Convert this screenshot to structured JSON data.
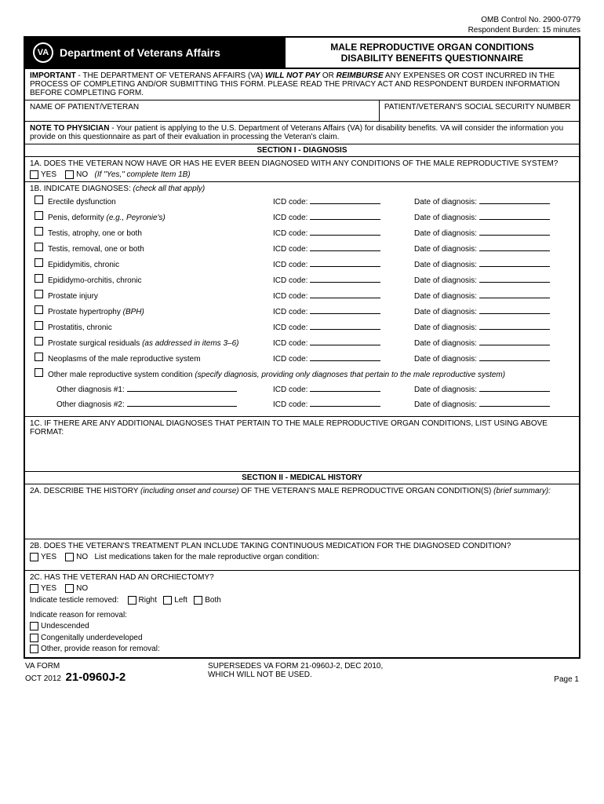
{
  "meta": {
    "omb": "OMB Control No. 2900-0779",
    "burden": "Respondent Burden: 15 minutes"
  },
  "header": {
    "logo_text": "VA",
    "dept": "Department of Veterans Affairs",
    "title1": "MALE REPRODUCTIVE ORGAN CONDITIONS",
    "title2": "DISABILITY BENEFITS QUESTIONNAIRE"
  },
  "important": {
    "label": "IMPORTANT",
    "text1": " - THE DEPARTMENT OF VETERANS AFFAIRS (VA) ",
    "will_not_pay": "WILL NOT PAY",
    "text2": " OR ",
    "reimburse": "REIMBURSE",
    "text3": " ANY EXPENSES OR COST INCURRED IN THE PROCESS OF COMPLETING AND/OR SUBMITTING THIS FORM. PLEASE READ THE PRIVACY ACT AND RESPONDENT BURDEN INFORMATION BEFORE COMPLETING FORM."
  },
  "patient": {
    "name_label": "NAME OF PATIENT/VETERAN",
    "ssn_label": "PATIENT/VETERAN'S SOCIAL SECURITY NUMBER"
  },
  "note": {
    "label": "NOTE TO PHYSICIAN",
    "text": " - Your patient is applying to the U.S. Department of Veterans Affairs (VA) for disability benefits. VA will consider the information you provide on this questionnaire as part of their evaluation in processing the Veteran's claim."
  },
  "section1": {
    "heading": "SECTION I - DIAGNOSIS",
    "q1a": "1A. DOES THE VETERAN NOW HAVE OR HAS HE EVER BEEN DIAGNOSED WITH ANY CONDITIONS OF THE MALE REPRODUCTIVE SYSTEM?",
    "yes": "YES",
    "no": "NO",
    "no_hint": "(If \"Yes,\" complete Item 1B)",
    "q1b": "1B. INDICATE DIAGNOSES:",
    "q1b_hint": " (check all that apply)",
    "icd_label": "ICD code:",
    "date_label": "Date of diagnosis:",
    "diagnoses": [
      {
        "label": "Erectile dysfunction",
        "italic": ""
      },
      {
        "label": "Penis, deformity ",
        "italic": "(e.g., Peyronie's)"
      },
      {
        "label": "Testis, atrophy, one or both",
        "italic": ""
      },
      {
        "label": "Testis, removal, one or both",
        "italic": ""
      },
      {
        "label": "Epididymitis, chronic",
        "italic": ""
      },
      {
        "label": "Epididymo-orchitis, chronic",
        "italic": ""
      },
      {
        "label": "Prostate injury",
        "italic": ""
      },
      {
        "label": "Prostate hypertrophy ",
        "italic": "(BPH)"
      },
      {
        "label": "Prostatitis, chronic",
        "italic": ""
      },
      {
        "label": "Prostate surgical residuals ",
        "italic": "(as addressed in items 3–6)"
      },
      {
        "label": "Neoplasms of the male reproductive system",
        "italic": ""
      }
    ],
    "other_label": "Other male reproductive system condition ",
    "other_hint": "(specify diagnosis, providing only diagnoses that pertain to the male reproductive system)",
    "other1": "Other diagnosis #1:",
    "other2": "Other diagnosis #2:",
    "q1c": "1C. IF THERE ARE ANY ADDITIONAL DIAGNOSES THAT PERTAIN TO THE MALE REPRODUCTIVE ORGAN CONDITIONS, LIST USING ABOVE FORMAT:"
  },
  "section2": {
    "heading": "SECTION II - MEDICAL HISTORY",
    "q2a_pre": "2A. DESCRIBE THE HISTORY ",
    "q2a_italic": "(including onset and course)",
    "q2a_post": " OF THE VETERAN'S MALE REPRODUCTIVE ORGAN CONDITION(S) ",
    "q2a_italic2": "(brief summary):",
    "q2b": "2B. DOES THE VETERAN'S TREATMENT PLAN INCLUDE TAKING CONTINUOUS MEDICATION FOR THE DIAGNOSED CONDITION?",
    "q2b_list": "List medications taken for the male reproductive organ condition:",
    "q2c": "2C. HAS THE VETERAN HAD AN ORCHIECTOMY?",
    "testicle": "Indicate testicle removed:",
    "right": "Right",
    "left": "Left",
    "both": "Both",
    "reason": "Indicate reason for removal:",
    "undescended": "Undescended",
    "congenital": "Congenitally underdeveloped",
    "other_reason": "Other, provide reason for removal:"
  },
  "footer": {
    "va_form": "VA FORM",
    "date": "OCT 2012",
    "number": "21-0960J-2",
    "supersedes1": "SUPERSEDES VA FORM 21-0960J-2, DEC 2010,",
    "supersedes2": "WHICH WILL NOT BE USED.",
    "page": "Page 1"
  }
}
